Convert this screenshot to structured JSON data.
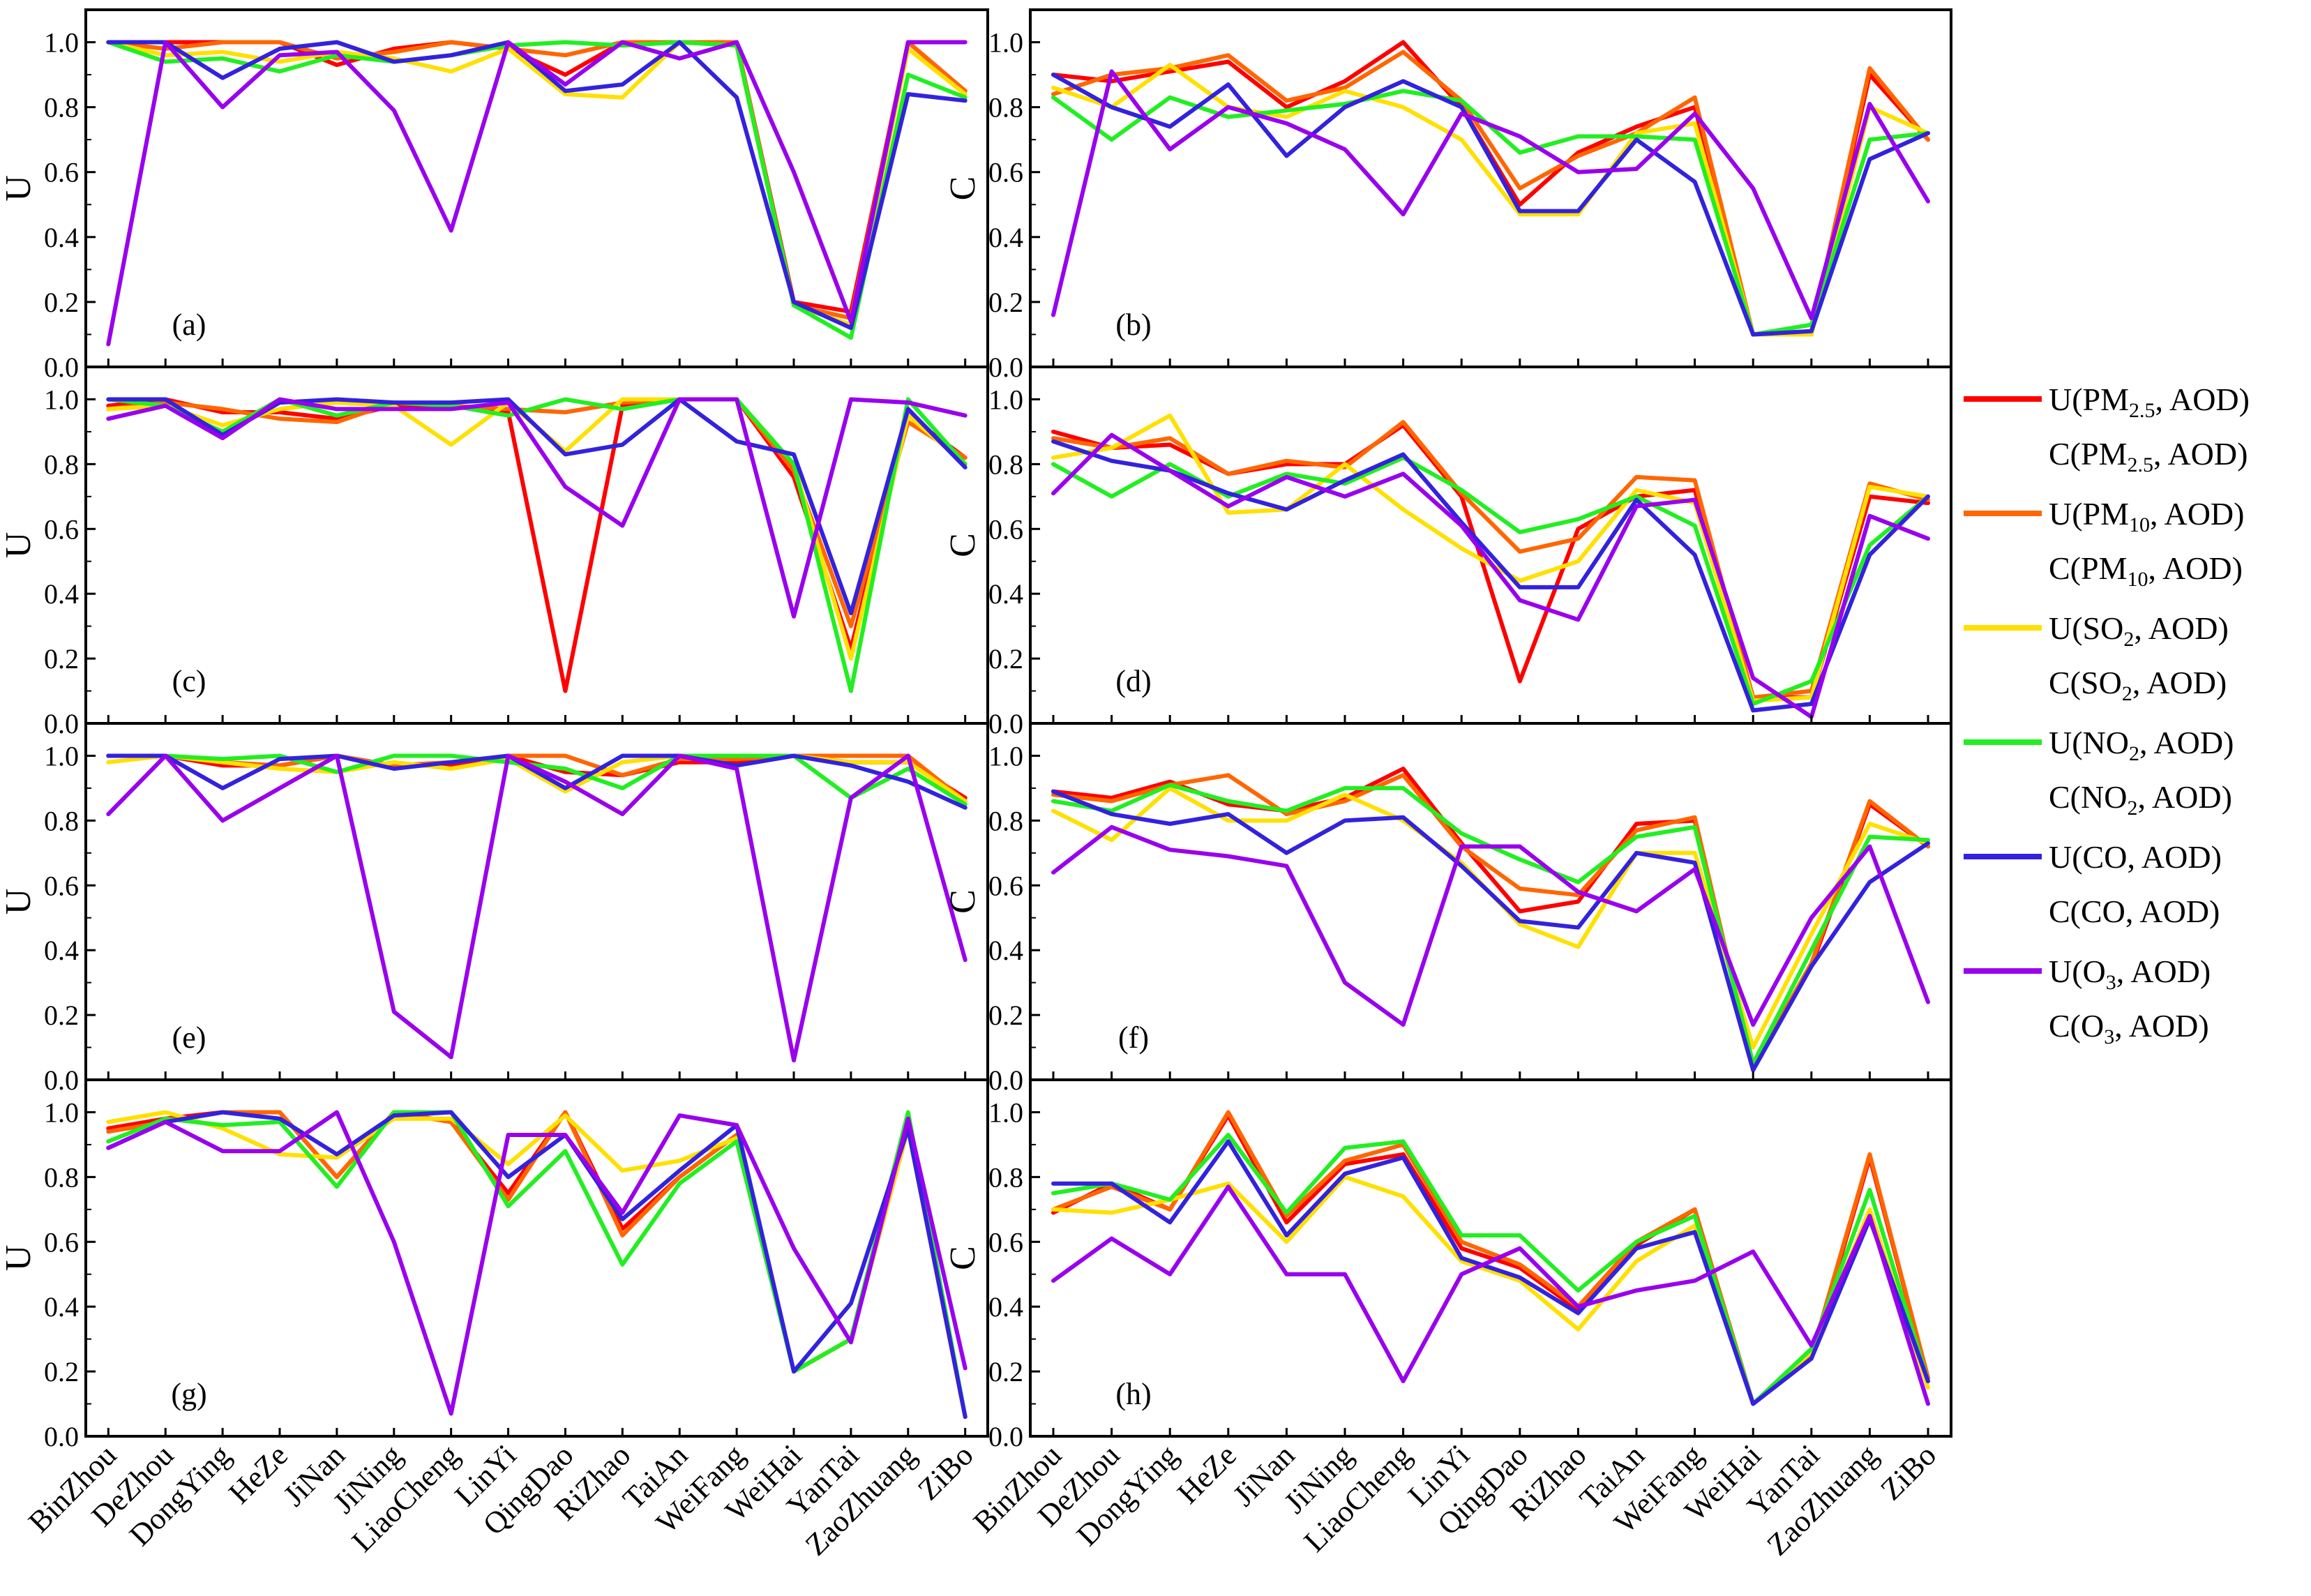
{
  "chart_data": {
    "type": "line",
    "categories": [
      "BinZhou",
      "DeZhou",
      "DongYing",
      "HeZe",
      "JiNan",
      "JiNing",
      "LiaoCheng",
      "LinYi",
      "QingDao",
      "RiZhao",
      "TaiAn",
      "WeiFang",
      "WeiHai",
      "YanTai",
      "ZaoZhuang",
      "ZiBo"
    ],
    "ylim": [
      0,
      1.1
    ],
    "yticks": [
      "0.0",
      "0.2",
      "0.4",
      "0.6",
      "0.8",
      "1.0"
    ],
    "colors": {
      "pm25": "#ff0000",
      "pm10": "#ff6600",
      "so2": "#ffe000",
      "no2": "#22ee22",
      "co": "#3322dd",
      "o3": "#9900ee"
    },
    "legend": [
      {
        "key": "pm25",
        "u": "U(PM",
        "u_sub": "2.5",
        "c": "C(PM",
        "c_sub": "2.5",
        "tail": ", AOD)"
      },
      {
        "key": "pm10",
        "u": "U(PM",
        "u_sub": "10",
        "c": "C(PM",
        "c_sub": "10",
        "tail": ", AOD)"
      },
      {
        "key": "so2",
        "u": "U(SO",
        "u_sub": "2",
        "c": "C(SO",
        "c_sub": "2",
        "tail": ", AOD)"
      },
      {
        "key": "no2",
        "u": "U(NO",
        "u_sub": "2",
        "c": "C(NO",
        "c_sub": "2",
        "tail": ", AOD)"
      },
      {
        "key": "co",
        "u": "U(CO",
        "u_sub": "",
        "c": "C(CO",
        "c_sub": "",
        "tail": ", AOD)"
      },
      {
        "key": "o3",
        "u": "U(O",
        "u_sub": "3",
        "c": "C(O",
        "c_sub": "3",
        "tail": ", AOD)"
      }
    ],
    "panels": [
      {
        "label": "(a)",
        "ylabel": "U",
        "series": {
          "pm25": [
            1.0,
            1.0,
            1.0,
            1.0,
            0.93,
            0.98,
            1.0,
            0.98,
            0.9,
            1.0,
            1.0,
            1.0,
            0.2,
            0.17,
            1.0,
            0.85
          ],
          "pm10": [
            1.0,
            0.98,
            1.0,
            1.0,
            0.95,
            0.97,
            1.0,
            0.98,
            0.96,
            1.0,
            1.0,
            1.0,
            0.19,
            0.15,
            1.0,
            0.85
          ],
          "so2": [
            1.0,
            0.96,
            0.97,
            0.94,
            0.97,
            0.95,
            0.91,
            0.98,
            0.84,
            0.83,
            1.0,
            0.99,
            0.19,
            0.13,
            0.98,
            0.84
          ],
          "no2": [
            1.0,
            0.94,
            0.95,
            0.91,
            0.96,
            0.94,
            0.96,
            0.99,
            1.0,
            0.99,
            1.0,
            0.99,
            0.19,
            0.09,
            0.9,
            0.83
          ],
          "co": [
            1.0,
            1.0,
            0.89,
            0.98,
            1.0,
            0.94,
            0.96,
            1.0,
            0.85,
            0.87,
            1.0,
            0.83,
            0.2,
            0.12,
            0.84,
            0.82
          ],
          "o3": [
            0.07,
            1.0,
            0.8,
            0.96,
            0.97,
            0.79,
            0.42,
            1.0,
            0.87,
            1.0,
            0.95,
            1.0,
            0.6,
            0.14,
            1.0,
            1.0
          ]
        }
      },
      {
        "label": "(b)",
        "ylabel": "C",
        "series": {
          "pm25": [
            0.9,
            0.88,
            0.91,
            0.94,
            0.8,
            0.88,
            1.0,
            0.8,
            0.5,
            0.66,
            0.74,
            0.8,
            0.1,
            0.1,
            0.9,
            0.7
          ],
          "pm10": [
            0.84,
            0.9,
            0.92,
            0.96,
            0.82,
            0.86,
            0.97,
            0.82,
            0.55,
            0.65,
            0.72,
            0.83,
            0.1,
            0.11,
            0.92,
            0.7
          ],
          "so2": [
            0.86,
            0.8,
            0.93,
            0.8,
            0.77,
            0.85,
            0.8,
            0.7,
            0.47,
            0.47,
            0.72,
            0.75,
            0.1,
            0.1,
            0.8,
            0.72
          ],
          "no2": [
            0.83,
            0.7,
            0.83,
            0.77,
            0.79,
            0.81,
            0.85,
            0.82,
            0.66,
            0.71,
            0.71,
            0.7,
            0.1,
            0.13,
            0.7,
            0.72
          ],
          "co": [
            0.9,
            0.8,
            0.74,
            0.87,
            0.65,
            0.8,
            0.88,
            0.8,
            0.48,
            0.48,
            0.7,
            0.57,
            0.1,
            0.11,
            0.64,
            0.72
          ],
          "o3": [
            0.16,
            0.91,
            0.67,
            0.8,
            0.75,
            0.67,
            0.47,
            0.78,
            0.71,
            0.6,
            0.61,
            0.78,
            0.55,
            0.15,
            0.81,
            0.51
          ]
        }
      },
      {
        "label": "(c)",
        "ylabel": "U",
        "series": {
          "pm25": [
            0.98,
            1.0,
            0.96,
            0.96,
            0.94,
            0.98,
            0.98,
            0.96,
            0.1,
            0.98,
            1.0,
            1.0,
            0.76,
            0.23,
            0.95,
            0.82
          ],
          "pm10": [
            0.97,
            0.99,
            0.97,
            0.94,
            0.93,
            0.99,
            0.98,
            0.97,
            0.96,
            0.99,
            1.0,
            1.0,
            0.78,
            0.3,
            0.93,
            0.82
          ],
          "so2": [
            0.97,
            0.98,
            0.92,
            0.97,
            0.99,
            0.98,
            0.86,
            0.99,
            0.84,
            1.0,
            1.0,
            1.0,
            0.8,
            0.2,
            0.95,
            0.8
          ],
          "no2": [
            1.0,
            0.98,
            0.9,
            1.0,
            0.95,
            0.99,
            0.98,
            0.95,
            1.0,
            0.97,
            1.0,
            1.0,
            0.8,
            0.1,
            1.0,
            0.8
          ],
          "co": [
            1.0,
            1.0,
            0.89,
            0.99,
            1.0,
            0.99,
            0.99,
            1.0,
            0.83,
            0.86,
            1.0,
            0.87,
            0.83,
            0.34,
            0.97,
            0.79
          ],
          "o3": [
            0.94,
            0.98,
            0.88,
            1.0,
            0.97,
            0.97,
            0.97,
            0.99,
            0.73,
            0.61,
            1.0,
            1.0,
            0.33,
            1.0,
            0.99,
            0.95
          ]
        }
      },
      {
        "label": "(d)",
        "ylabel": "C",
        "series": {
          "pm25": [
            0.9,
            0.85,
            0.86,
            0.77,
            0.8,
            0.8,
            0.92,
            0.7,
            0.13,
            0.6,
            0.7,
            0.72,
            0.08,
            0.08,
            0.7,
            0.68
          ],
          "pm10": [
            0.88,
            0.85,
            0.88,
            0.77,
            0.81,
            0.79,
            0.93,
            0.71,
            0.53,
            0.57,
            0.76,
            0.75,
            0.08,
            0.1,
            0.74,
            0.69
          ],
          "so2": [
            0.82,
            0.85,
            0.95,
            0.65,
            0.66,
            0.8,
            0.66,
            0.54,
            0.44,
            0.5,
            0.72,
            0.68,
            0.07,
            0.08,
            0.73,
            0.7
          ],
          "no2": [
            0.8,
            0.7,
            0.8,
            0.7,
            0.77,
            0.74,
            0.82,
            0.72,
            0.59,
            0.63,
            0.7,
            0.61,
            0.06,
            0.13,
            0.55,
            0.7
          ],
          "co": [
            0.87,
            0.81,
            0.78,
            0.71,
            0.66,
            0.75,
            0.83,
            0.62,
            0.42,
            0.42,
            0.69,
            0.52,
            0.04,
            0.06,
            0.52,
            0.7
          ],
          "o3": [
            0.71,
            0.89,
            0.78,
            0.67,
            0.76,
            0.7,
            0.77,
            0.61,
            0.38,
            0.32,
            0.67,
            0.69,
            0.14,
            0.02,
            0.64,
            0.57
          ]
        }
      },
      {
        "label": "(e)",
        "ylabel": "U",
        "series": {
          "pm25": [
            1.0,
            1.0,
            0.97,
            0.97,
            1.0,
            0.97,
            0.97,
            1.0,
            0.95,
            0.94,
            0.98,
            0.98,
            1.0,
            0.98,
            0.98,
            0.87
          ],
          "pm10": [
            1.0,
            1.0,
            0.98,
            0.97,
            1.0,
            0.97,
            0.98,
            1.0,
            1.0,
            0.94,
            0.99,
            0.99,
            1.0,
            1.0,
            1.0,
            0.86
          ],
          "so2": [
            0.98,
            1.0,
            0.98,
            0.96,
            0.95,
            0.98,
            0.96,
            0.99,
            0.89,
            0.98,
            1.0,
            1.0,
            1.0,
            0.98,
            0.98,
            0.86
          ],
          "no2": [
            1.0,
            1.0,
            0.99,
            1.0,
            0.95,
            1.0,
            1.0,
            0.98,
            0.96,
            0.9,
            1.0,
            1.0,
            1.0,
            0.87,
            0.96,
            0.85
          ],
          "co": [
            1.0,
            1.0,
            0.9,
            0.99,
            1.0,
            0.96,
            0.98,
            1.0,
            0.9,
            1.0,
            1.0,
            0.97,
            1.0,
            0.97,
            0.92,
            0.84
          ],
          "o3": [
            0.82,
            1.0,
            0.8,
            0.9,
            1.0,
            0.21,
            0.07,
            1.0,
            0.92,
            0.82,
            1.0,
            0.96,
            0.06,
            0.87,
            1.0,
            0.37
          ]
        }
      },
      {
        "label": "(f)",
        "ylabel": "C",
        "series": {
          "pm25": [
            0.89,
            0.87,
            0.92,
            0.85,
            0.83,
            0.87,
            0.96,
            0.73,
            0.52,
            0.55,
            0.79,
            0.8,
            0.04,
            0.35,
            0.85,
            0.72
          ],
          "pm10": [
            0.88,
            0.86,
            0.91,
            0.94,
            0.82,
            0.86,
            0.94,
            0.72,
            0.59,
            0.57,
            0.77,
            0.81,
            0.04,
            0.36,
            0.86,
            0.72
          ],
          "so2": [
            0.83,
            0.74,
            0.9,
            0.8,
            0.8,
            0.88,
            0.8,
            0.67,
            0.48,
            0.41,
            0.7,
            0.7,
            0.1,
            0.45,
            0.79,
            0.73
          ],
          "no2": [
            0.86,
            0.83,
            0.91,
            0.86,
            0.83,
            0.9,
            0.9,
            0.76,
            0.68,
            0.61,
            0.75,
            0.78,
            0.05,
            0.4,
            0.75,
            0.74
          ],
          "co": [
            0.89,
            0.82,
            0.79,
            0.82,
            0.7,
            0.8,
            0.81,
            0.66,
            0.49,
            0.47,
            0.7,
            0.67,
            0.03,
            0.35,
            0.61,
            0.73
          ],
          "o3": [
            0.64,
            0.78,
            0.71,
            0.69,
            0.66,
            0.3,
            0.17,
            0.72,
            0.72,
            0.58,
            0.52,
            0.65,
            0.17,
            0.5,
            0.72,
            0.24
          ]
        }
      },
      {
        "label": "(g)",
        "ylabel": "U",
        "series": {
          "pm25": [
            0.95,
            0.98,
            1.0,
            1.0,
            0.8,
            1.0,
            0.97,
            0.75,
            1.0,
            0.64,
            0.8,
            0.93,
            0.2,
            0.3,
            0.95,
            0.06
          ],
          "pm10": [
            0.94,
            0.97,
            1.0,
            1.0,
            0.8,
            1.0,
            0.97,
            0.73,
            1.0,
            0.62,
            0.8,
            0.93,
            0.2,
            0.3,
            0.95,
            0.06
          ],
          "so2": [
            0.97,
            1.0,
            0.95,
            0.87,
            0.86,
            0.98,
            0.98,
            0.84,
            0.99,
            0.82,
            0.85,
            0.92,
            0.2,
            0.3,
            0.95,
            0.06
          ],
          "no2": [
            0.91,
            0.98,
            0.96,
            0.97,
            0.77,
            1.0,
            1.0,
            0.71,
            0.88,
            0.53,
            0.78,
            0.91,
            0.2,
            0.3,
            1.0,
            0.06
          ],
          "co": [
            0.89,
            0.97,
            1.0,
            0.98,
            0.87,
            0.99,
            1.0,
            0.8,
            0.93,
            0.67,
            0.82,
            0.96,
            0.2,
            0.41,
            0.95,
            0.06
          ],
          "o3": [
            0.89,
            0.97,
            0.88,
            0.88,
            1.0,
            0.6,
            0.07,
            0.93,
            0.93,
            0.69,
            0.99,
            0.96,
            0.58,
            0.29,
            0.98,
            0.21
          ]
        }
      },
      {
        "label": "(h)",
        "ylabel": "C",
        "series": {
          "pm25": [
            0.69,
            0.78,
            0.7,
            0.99,
            0.66,
            0.84,
            0.87,
            0.58,
            0.52,
            0.39,
            0.59,
            0.7,
            0.1,
            0.24,
            0.86,
            0.18
          ],
          "pm10": [
            0.7,
            0.77,
            0.7,
            1.0,
            0.68,
            0.85,
            0.9,
            0.6,
            0.53,
            0.4,
            0.6,
            0.7,
            0.1,
            0.25,
            0.87,
            0.18
          ],
          "so2": [
            0.7,
            0.69,
            0.73,
            0.78,
            0.6,
            0.8,
            0.74,
            0.54,
            0.48,
            0.33,
            0.54,
            0.65,
            0.1,
            0.26,
            0.7,
            0.15
          ],
          "no2": [
            0.75,
            0.78,
            0.73,
            0.93,
            0.69,
            0.89,
            0.91,
            0.62,
            0.62,
            0.45,
            0.6,
            0.68,
            0.1,
            0.27,
            0.76,
            0.17
          ],
          "co": [
            0.78,
            0.78,
            0.66,
            0.91,
            0.62,
            0.81,
            0.86,
            0.55,
            0.49,
            0.38,
            0.58,
            0.63,
            0.1,
            0.24,
            0.67,
            0.17
          ],
          "o3": [
            0.48,
            0.61,
            0.5,
            0.77,
            0.5,
            0.5,
            0.17,
            0.5,
            0.58,
            0.4,
            0.45,
            0.48,
            0.57,
            0.28,
            0.68,
            0.1
          ]
        }
      }
    ]
  }
}
